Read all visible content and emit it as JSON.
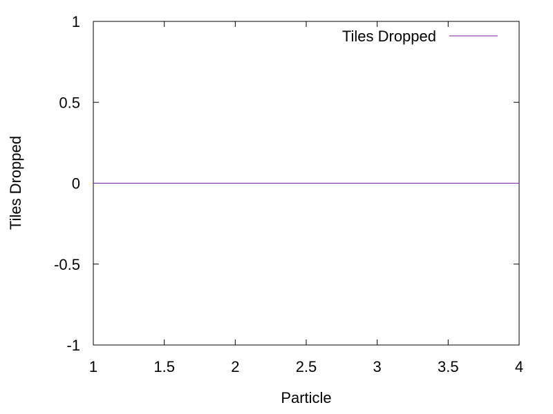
{
  "chart_data": {
    "type": "line",
    "xlabel": "Particle",
    "ylabel": "Tiles Dropped",
    "xlim": [
      1,
      4
    ],
    "ylim": [
      -1,
      1
    ],
    "xticks": [
      1,
      1.5,
      2,
      2.5,
      3,
      3.5,
      4
    ],
    "yticks": [
      -1,
      -0.5,
      0,
      0.5,
      1
    ],
    "xtick_labels": [
      "1",
      "1.5",
      "2",
      "2.5",
      "3",
      "3.5",
      "4"
    ],
    "ytick_labels": [
      "-1",
      "-0.5",
      "0",
      "0.5",
      "1"
    ],
    "grid": false,
    "legend_position": "top-right",
    "series": [
      {
        "name": "Tiles Dropped",
        "color": "#7b1fa2",
        "x": [
          1,
          2,
          3,
          4
        ],
        "y": [
          0,
          0,
          0,
          0
        ]
      }
    ]
  }
}
